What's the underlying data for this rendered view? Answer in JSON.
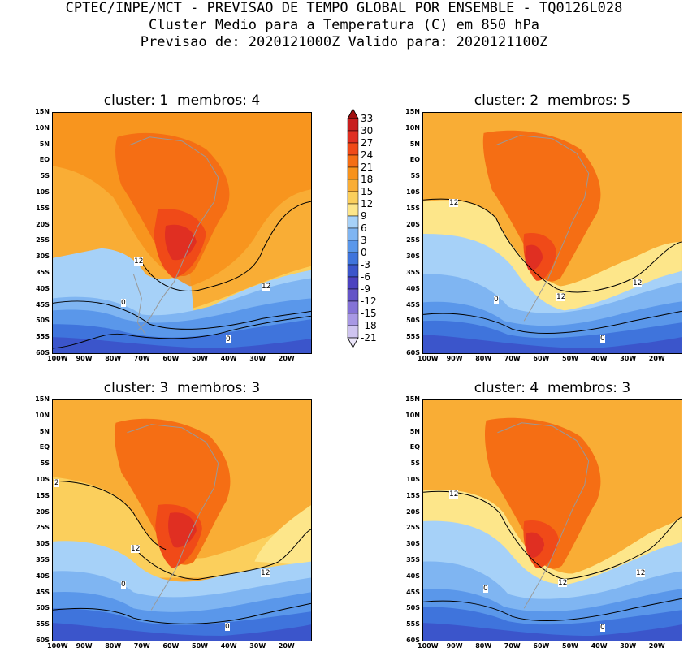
{
  "header": {
    "line1": "CPTEC/INPE/MCT - PREVISAO DE TEMPO GLOBAL POR ENSEMBLE - TQ0126L028",
    "line2": "Cluster Medio para a Temperatura (C) em 850 hPa",
    "line3": "Previsao de: 2020121000Z   Valido para: 2020121100Z"
  },
  "panels": [
    {
      "title": "cluster: 1  membros: 4",
      "labels": [
        "12",
        "12",
        "0",
        "0"
      ]
    },
    {
      "title": "cluster: 2  membros: 5",
      "labels": [
        "12",
        "12",
        "12",
        "0",
        "0"
      ]
    },
    {
      "title": "cluster: 3  membros: 3",
      "labels": [
        "2",
        "12",
        "12",
        "0",
        "0"
      ]
    },
    {
      "title": "cluster: 4  membros: 3",
      "labels": [
        "12",
        "12",
        "12",
        "0",
        "0"
      ]
    }
  ],
  "lat_ticks": [
    "15N",
    "10N",
    "5N",
    "EQ",
    "5S",
    "10S",
    "15S",
    "20S",
    "25S",
    "30S",
    "35S",
    "40S",
    "45S",
    "50S",
    "55S",
    "60S"
  ],
  "lon_ticks": [
    "100W",
    "90W",
    "80W",
    "70W",
    "60W",
    "50W",
    "40W",
    "30W",
    "20W"
  ],
  "colorbar": {
    "labels": [
      "33",
      "30",
      "27",
      "24",
      "21",
      "18",
      "15",
      "12",
      "9",
      "6",
      "3",
      "0",
      "-3",
      "-6",
      "-9",
      "-12",
      "-15",
      "-18",
      "-21"
    ],
    "colors": [
      "#a01010",
      "#c81e1e",
      "#e02f22",
      "#f04a18",
      "#f56e14",
      "#f7921c",
      "#f9ad35",
      "#fbcf5c",
      "#fde68a",
      "#a6d1f8",
      "#7fb5f2",
      "#5a97ea",
      "#3f74dc",
      "#3b55cb",
      "#4c42c0",
      "#6454c7",
      "#8472d6",
      "#a898e4",
      "#cfc4f0",
      "#ece6fa"
    ]
  }
}
